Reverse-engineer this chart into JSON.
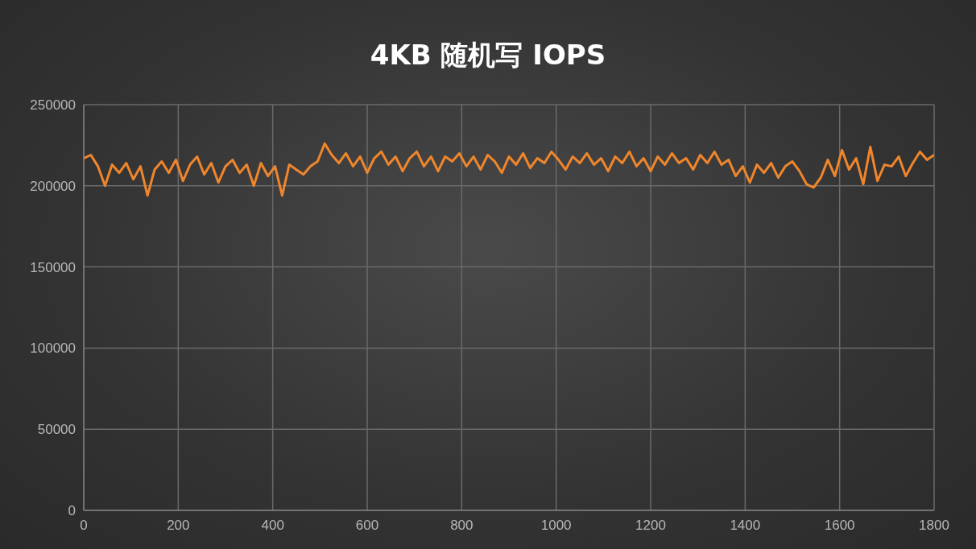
{
  "chart_data": {
    "type": "line",
    "title": "4KB 随机写 IOPS",
    "x": [
      0,
      15,
      30,
      45,
      60,
      75,
      90,
      105,
      120,
      135,
      150,
      165,
      180,
      195,
      210,
      225,
      240,
      255,
      270,
      285,
      300,
      315,
      330,
      345,
      360,
      375,
      390,
      405,
      420,
      435,
      450,
      465,
      480,
      495,
      510,
      525,
      540,
      555,
      570,
      585,
      600,
      615,
      630,
      645,
      660,
      675,
      690,
      705,
      720,
      735,
      750,
      765,
      780,
      795,
      810,
      825,
      840,
      855,
      870,
      885,
      900,
      915,
      930,
      945,
      960,
      975,
      990,
      1005,
      1020,
      1035,
      1050,
      1065,
      1080,
      1095,
      1110,
      1125,
      1140,
      1155,
      1170,
      1185,
      1200,
      1215,
      1230,
      1245,
      1260,
      1275,
      1290,
      1305,
      1320,
      1335,
      1350,
      1365,
      1380,
      1395,
      1410,
      1425,
      1440,
      1455,
      1470,
      1485,
      1500,
      1515,
      1530,
      1545,
      1560,
      1575,
      1590,
      1605,
      1620,
      1635,
      1650,
      1665,
      1680,
      1695,
      1710,
      1725,
      1740,
      1755,
      1770,
      1785,
      1800
    ],
    "series": [
      {
        "color": "#f0862c",
        "values": [
          217000,
          219000,
          212000,
          200000,
          213000,
          208000,
          214000,
          204000,
          212000,
          194000,
          210000,
          215000,
          208000,
          216000,
          203000,
          213000,
          218000,
          207000,
          214000,
          202000,
          212000,
          216000,
          208000,
          213000,
          200000,
          214000,
          206000,
          212000,
          194000,
          213000,
          210000,
          207000,
          212000,
          215000,
          226000,
          219000,
          214000,
          220000,
          212000,
          218000,
          208000,
          217000,
          221000,
          213000,
          218000,
          209000,
          217000,
          221000,
          212000,
          218000,
          209000,
          218000,
          215000,
          220000,
          212000,
          218000,
          210000,
          219000,
          215000,
          208000,
          218000,
          213000,
          220000,
          211000,
          217000,
          214000,
          221000,
          216000,
          210000,
          218000,
          214000,
          220000,
          213000,
          217000,
          209000,
          218000,
          214000,
          221000,
          212000,
          217000,
          209000,
          218000,
          213000,
          220000,
          214000,
          217000,
          210000,
          219000,
          214000,
          221000,
          213000,
          216000,
          206000,
          212000,
          202000,
          213000,
          208000,
          214000,
          205000,
          212000,
          215000,
          209000,
          201000,
          199000,
          205000,
          216000,
          206000,
          222000,
          210000,
          217000,
          201000,
          224000,
          203000,
          213000,
          212000,
          218000,
          206000,
          214000,
          221000,
          216000,
          219000
        ]
      }
    ],
    "xlim": [
      0,
      1800
    ],
    "xticks": [
      0,
      200,
      400,
      600,
      800,
      1000,
      1200,
      1400,
      1600,
      1800
    ],
    "ylim": [
      0,
      250000
    ],
    "yticks": [
      0,
      50000,
      100000,
      150000,
      200000,
      250000
    ],
    "grid": true,
    "marker": "none",
    "line_style": "solid"
  }
}
